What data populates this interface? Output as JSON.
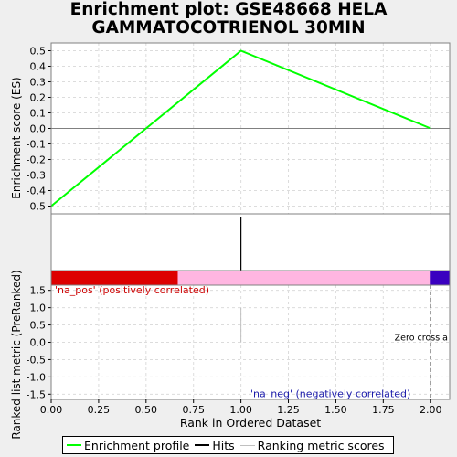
{
  "title": {
    "line1": "Enrichment plot: GSE48668 HELA",
    "line2": "GAMMATOCOTRIENOL 30MIN"
  },
  "colors": {
    "es_line": "#00ff00",
    "hits": "#000000",
    "pos_bar": "#dd0000",
    "mid_bar": "#ffb6e1",
    "neg_bar": "#3a00c0",
    "pos_label": "#cc0000",
    "neg_label": "#1a1aaa",
    "grid": "#dcdcdc",
    "zero_cross": "#808080"
  },
  "chart_data": {
    "type": "line",
    "x_range": [
      0,
      2.1
    ],
    "x_ticks": [
      "0.00",
      "0.25",
      "0.50",
      "0.75",
      "1.00",
      "1.25",
      "1.50",
      "1.75",
      "2.00"
    ],
    "xlabel": "Rank in Ordered Dataset",
    "es_panel": {
      "ylabel": "Enrichment score (ES)",
      "ylim": [
        -0.55,
        0.55
      ],
      "y_ticks": [
        "0.5",
        "0.4",
        "0.3",
        "0.2",
        "0.1",
        "0.0",
        "-0.1",
        "-0.2",
        "-0.3",
        "-0.4",
        "-0.5"
      ],
      "series": [
        {
          "name": "Enrichment profile",
          "x": [
            0,
            1,
            2
          ],
          "y": [
            -0.5,
            0.5,
            0.0
          ]
        }
      ]
    },
    "hits": [
      1.0
    ],
    "ranking_panel": {
      "ylabel": "Ranked list metric (PreRanked)",
      "ylim": [
        -1.65,
        1.65
      ],
      "y_ticks": [
        "1.5",
        "1.0",
        "0.5",
        "0.0",
        "-0.5",
        "-1.0",
        "-1.5"
      ],
      "metric": [
        {
          "x": 1.0,
          "y": 1.0
        }
      ],
      "zero_cross_x": 2.0,
      "zero_cross_label": "Zero cross a",
      "pos_label": "'na_pos' (positively correlated)",
      "neg_label": "'na_neg' (negatively correlated)"
    },
    "color_bar": {
      "pos_end": 0.667,
      "neg_start": 2.0
    },
    "legend": {
      "entries": [
        "Enrichment profile",
        "Hits",
        "Ranking metric scores"
      ],
      "placement": "bottom"
    }
  }
}
